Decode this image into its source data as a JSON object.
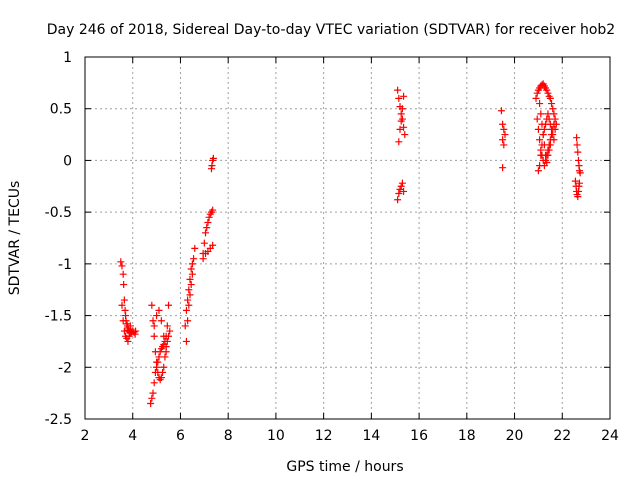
{
  "chart_data": {
    "type": "scatter",
    "title": "Day 246 of 2018, Sidereal Day-to-day VTEC variation (SDTVAR) for receiver hob2",
    "xlabel": "GPS time / hours",
    "ylabel": "SDTVAR / TECUs",
    "xlim": [
      2,
      24
    ],
    "ylim": [
      -2.5,
      1
    ],
    "xticks": [
      2,
      4,
      6,
      8,
      10,
      12,
      14,
      16,
      18,
      20,
      22,
      24
    ],
    "yticks": [
      -2.5,
      -2,
      -1.5,
      -1,
      -0.5,
      0,
      0.5,
      1
    ],
    "xtick_labels": [
      "2",
      "4",
      "6",
      "8",
      "10",
      "12",
      "14",
      "16",
      "18",
      "20",
      "22",
      "24"
    ],
    "ytick_labels": [
      "-2.5",
      "-2",
      "-1.5",
      "-1",
      "-0.5",
      "0",
      "0.5",
      "1"
    ],
    "grid": true,
    "marker": "+",
    "marker_color": "#ff0000",
    "series": [
      {
        "name": "SDTVAR",
        "x": [
          3.5,
          3.55,
          3.6,
          3.62,
          3.65,
          3.68,
          3.7,
          3.72,
          3.75,
          3.78,
          3.8,
          3.82,
          3.85,
          3.88,
          3.9,
          3.95,
          4.0,
          4.05,
          4.1,
          4.12,
          3.55,
          3.6,
          3.65,
          3.7,
          3.75,
          3.8,
          3.85,
          3.9,
          4.75,
          4.8,
          4.85,
          4.9,
          4.95,
          5.0,
          5.05,
          5.1,
          5.15,
          5.2,
          5.25,
          5.3,
          5.35,
          5.4,
          5.45,
          5.5,
          4.8,
          4.85,
          4.9,
          4.95,
          5.0,
          5.05,
          5.1,
          5.15,
          5.2,
          5.25,
          5.3,
          5.35,
          5.4,
          5.45,
          5.5,
          5.55,
          4.9,
          5.0,
          5.1,
          5.2,
          5.3,
          5.4,
          6.2,
          6.25,
          6.3,
          6.35,
          6.4,
          6.45,
          6.5,
          6.55,
          6.6,
          6.25,
          6.3,
          6.35,
          6.4,
          6.45,
          6.5,
          6.95,
          7.0,
          7.05,
          7.1,
          7.15,
          7.2,
          7.25,
          7.3,
          7.35,
          6.95,
          7.05,
          7.15,
          7.25,
          7.35,
          7.3,
          7.32,
          7.35,
          7.38,
          15.1,
          15.15,
          15.2,
          15.25,
          15.3,
          15.35,
          15.4,
          15.15,
          15.2,
          15.25,
          15.3,
          15.35,
          15.1,
          15.15,
          15.2,
          15.25,
          15.3,
          15.35,
          19.45,
          19.5,
          19.55,
          19.6,
          19.5,
          19.55,
          19.5,
          20.9,
          20.95,
          21.0,
          21.05,
          21.1,
          21.15,
          21.2,
          21.25,
          21.3,
          21.35,
          21.4,
          21.45,
          21.5,
          21.55,
          21.6,
          21.65,
          21.7,
          21.75,
          20.95,
          21.0,
          21.05,
          21.1,
          21.15,
          21.2,
          21.25,
          21.3,
          21.35,
          21.4,
          21.45,
          21.5,
          21.55,
          21.6,
          21.65,
          21.7,
          21.0,
          21.05,
          21.1,
          21.15,
          21.2,
          21.25,
          21.3,
          21.35,
          21.4,
          21.45,
          21.5,
          21.55,
          21.6,
          21.65,
          21.05,
          21.1,
          21.15,
          21.2,
          21.25,
          21.3,
          21.35,
          21.4,
          21.45,
          21.5,
          22.6,
          22.62,
          22.65,
          22.68,
          22.7,
          22.72,
          22.75,
          22.55,
          22.58,
          22.6,
          22.62,
          22.65,
          22.68,
          22.7,
          22.72
        ],
        "y": [
          -0.98,
          -1.02,
          -1.1,
          -1.2,
          -1.35,
          -1.45,
          -1.5,
          -1.55,
          -1.58,
          -1.6,
          -1.62,
          -1.64,
          -1.65,
          -1.66,
          -1.67,
          -1.66,
          -1.65,
          -1.66,
          -1.68,
          -1.65,
          -1.4,
          -1.55,
          -1.65,
          -1.7,
          -1.72,
          -1.75,
          -1.7,
          -1.6,
          -2.35,
          -2.3,
          -2.25,
          -2.15,
          -2.05,
          -2.0,
          -1.95,
          -1.9,
          -1.85,
          -1.82,
          -1.8,
          -1.78,
          -1.75,
          -1.7,
          -1.6,
          -1.4,
          -1.4,
          -1.55,
          -1.7,
          -1.85,
          -1.95,
          -2.05,
          -2.1,
          -2.12,
          -2.1,
          -2.05,
          -2.0,
          -1.9,
          -1.8,
          -1.75,
          -1.7,
          -1.65,
          -1.6,
          -1.5,
          -1.45,
          -1.55,
          -1.7,
          -1.85,
          -1.6,
          -1.45,
          -1.35,
          -1.25,
          -1.15,
          -1.05,
          -1.0,
          -0.95,
          -0.85,
          -1.75,
          -1.55,
          -1.4,
          -1.3,
          -1.2,
          -1.1,
          -0.9,
          -0.8,
          -0.7,
          -0.65,
          -0.6,
          -0.55,
          -0.52,
          -0.5,
          -0.48,
          -0.95,
          -0.9,
          -0.88,
          -0.85,
          -0.82,
          -0.08,
          -0.05,
          0.0,
          0.02,
          0.68,
          0.6,
          0.52,
          0.45,
          0.4,
          0.32,
          0.25,
          0.18,
          0.3,
          0.38,
          0.5,
          0.62,
          -0.38,
          -0.32,
          -0.28,
          -0.25,
          -0.22,
          -0.3,
          0.48,
          0.35,
          0.3,
          0.25,
          0.2,
          0.15,
          -0.07,
          0.6,
          0.65,
          0.68,
          0.7,
          0.72,
          0.73,
          0.74,
          0.72,
          0.7,
          0.68,
          0.65,
          0.62,
          0.6,
          0.55,
          0.5,
          0.45,
          0.4,
          0.35,
          0.4,
          0.3,
          0.2,
          0.1,
          0.05,
          0.0,
          -0.05,
          0.0,
          0.05,
          0.1,
          0.15,
          0.2,
          0.25,
          0.3,
          0.35,
          0.3,
          -0.1,
          -0.05,
          0.05,
          0.15,
          0.25,
          0.3,
          0.35,
          0.4,
          0.45,
          0.4,
          0.35,
          0.3,
          0.25,
          0.2,
          0.55,
          0.45,
          0.35,
          0.25,
          0.15,
          0.05,
          -0.02,
          0.05,
          0.1,
          0.15,
          0.22,
          0.15,
          0.08,
          0.0,
          -0.05,
          -0.1,
          -0.12,
          -0.2,
          -0.25,
          -0.3,
          -0.33,
          -0.35,
          -0.3,
          -0.25,
          -0.22
        ]
      }
    ]
  }
}
